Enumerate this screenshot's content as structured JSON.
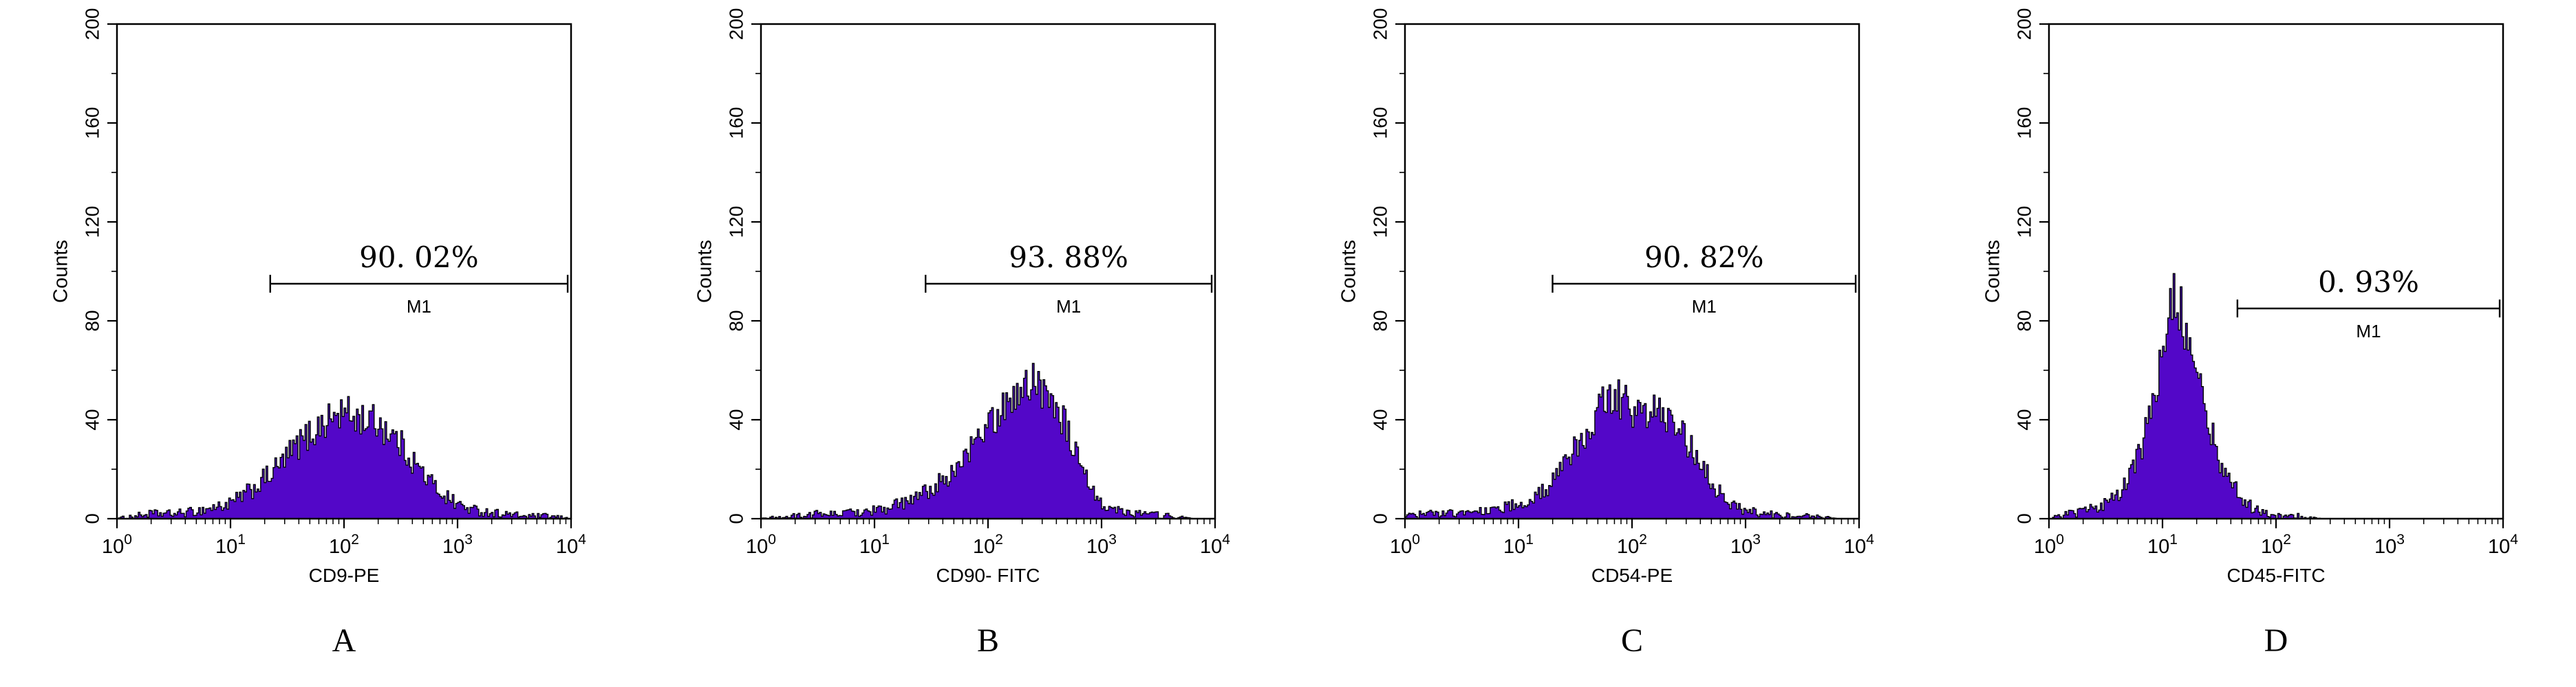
{
  "figure": {
    "background": "#ffffff",
    "axis_color": "#000000",
    "text_color": "#000000"
  },
  "chart_data": [
    {
      "type": "area",
      "panel_label": "A",
      "xlabel": "CD9-PE",
      "ylabel": "Counts",
      "x_scale": "log10",
      "xlim_exponents": [
        0,
        4
      ],
      "ylim": [
        0,
        200
      ],
      "x_ticks_exponents": [
        0,
        1,
        2,
        3,
        4
      ],
      "y_ticks": [
        0,
        40,
        80,
        120,
        160,
        200
      ],
      "histogram_color": "#5307c8",
      "marker": {
        "label": "M1",
        "percent_label": "90. 02%",
        "from_exponent": 1.35,
        "to_exponent": 3.97,
        "y_counts": 95
      },
      "envelope": [
        [
          0,
          0
        ],
        [
          0.15,
          1
        ],
        [
          0.3,
          2
        ],
        [
          0.5,
          2
        ],
        [
          0.7,
          3
        ],
        [
          0.9,
          5
        ],
        [
          1.0,
          6
        ],
        [
          1.1,
          9
        ],
        [
          1.2,
          12
        ],
        [
          1.3,
          16
        ],
        [
          1.4,
          20
        ],
        [
          1.5,
          25
        ],
        [
          1.6,
          30
        ],
        [
          1.7,
          34
        ],
        [
          1.8,
          38
        ],
        [
          1.9,
          41
        ],
        [
          2.0,
          43
        ],
        [
          2.1,
          41
        ],
        [
          2.2,
          40
        ],
        [
          2.3,
          39
        ],
        [
          2.4,
          35
        ],
        [
          2.5,
          30
        ],
        [
          2.6,
          24
        ],
        [
          2.7,
          18
        ],
        [
          2.8,
          13
        ],
        [
          2.9,
          9
        ],
        [
          3.0,
          6
        ],
        [
          3.1,
          4
        ],
        [
          3.2,
          3
        ],
        [
          3.4,
          2
        ],
        [
          3.6,
          1
        ],
        [
          3.8,
          1
        ],
        [
          4,
          0
        ]
      ]
    },
    {
      "type": "area",
      "panel_label": "B",
      "xlabel": "CD90- FITC",
      "ylabel": "Counts",
      "x_scale": "log10",
      "xlim_exponents": [
        0,
        4
      ],
      "ylim": [
        0,
        200
      ],
      "x_ticks_exponents": [
        0,
        1,
        2,
        3,
        4
      ],
      "y_ticks": [
        0,
        40,
        80,
        120,
        160,
        200
      ],
      "histogram_color": "#5307c8",
      "marker": {
        "label": "M1",
        "percent_label": "93. 88%",
        "from_exponent": 1.45,
        "to_exponent": 3.97,
        "y_counts": 95
      },
      "envelope": [
        [
          0,
          0
        ],
        [
          0.3,
          1
        ],
        [
          0.5,
          2
        ],
        [
          0.7,
          2
        ],
        [
          0.9,
          3
        ],
        [
          1.1,
          4
        ],
        [
          1.3,
          7
        ],
        [
          1.5,
          12
        ],
        [
          1.7,
          19
        ],
        [
          1.8,
          25
        ],
        [
          1.9,
          31
        ],
        [
          2.0,
          37
        ],
        [
          2.1,
          43
        ],
        [
          2.2,
          48
        ],
        [
          2.3,
          53
        ],
        [
          2.4,
          56
        ],
        [
          2.5,
          52
        ],
        [
          2.6,
          47
        ],
        [
          2.7,
          36
        ],
        [
          2.8,
          22
        ],
        [
          2.9,
          12
        ],
        [
          3.0,
          7
        ],
        [
          3.1,
          4
        ],
        [
          3.2,
          3
        ],
        [
          3.4,
          2
        ],
        [
          3.6,
          1
        ],
        [
          3.8,
          0
        ],
        [
          4,
          0
        ]
      ]
    },
    {
      "type": "area",
      "panel_label": "C",
      "xlabel": "CD54-PE",
      "ylabel": "Counts",
      "x_scale": "log10",
      "xlim_exponents": [
        0,
        4
      ],
      "ylim": [
        0,
        200
      ],
      "x_ticks_exponents": [
        0,
        1,
        2,
        3,
        4
      ],
      "y_ticks": [
        0,
        40,
        80,
        120,
        160,
        200
      ],
      "histogram_color": "#5307c8",
      "marker": {
        "label": "M1",
        "percent_label": "90. 82%",
        "from_exponent": 1.3,
        "to_exponent": 3.97,
        "y_counts": 95
      },
      "envelope": [
        [
          0,
          1
        ],
        [
          0.2,
          2
        ],
        [
          0.4,
          2
        ],
        [
          0.6,
          3
        ],
        [
          0.8,
          4
        ],
        [
          1.0,
          6
        ],
        [
          1.2,
          10
        ],
        [
          1.3,
          14
        ],
        [
          1.4,
          20
        ],
        [
          1.5,
          28
        ],
        [
          1.6,
          36
        ],
        [
          1.7,
          44
        ],
        [
          1.8,
          50
        ],
        [
          1.9,
          48
        ],
        [
          2.0,
          44
        ],
        [
          2.1,
          42
        ],
        [
          2.2,
          44
        ],
        [
          2.3,
          41
        ],
        [
          2.4,
          36
        ],
        [
          2.5,
          30
        ],
        [
          2.6,
          22
        ],
        [
          2.7,
          15
        ],
        [
          2.8,
          9
        ],
        [
          2.9,
          5
        ],
        [
          3.0,
          3
        ],
        [
          3.2,
          2
        ],
        [
          3.4,
          1
        ],
        [
          3.6,
          1
        ],
        [
          3.8,
          0
        ],
        [
          4,
          0
        ]
      ]
    },
    {
      "type": "area",
      "panel_label": "D",
      "xlabel": "CD45-FITC",
      "ylabel": "Counts",
      "x_scale": "log10",
      "xlim_exponents": [
        0,
        4
      ],
      "ylim": [
        0,
        200
      ],
      "x_ticks_exponents": [
        0,
        1,
        2,
        3,
        4
      ],
      "y_ticks": [
        0,
        40,
        80,
        120,
        160,
        200
      ],
      "histogram_color": "#5307c8",
      "marker": {
        "label": "M1",
        "percent_label": "0. 93%",
        "from_exponent": 1.66,
        "to_exponent": 3.97,
        "y_counts": 85
      },
      "envelope": [
        [
          0,
          1
        ],
        [
          0.2,
          2
        ],
        [
          0.4,
          4
        ],
        [
          0.5,
          6
        ],
        [
          0.6,
          10
        ],
        [
          0.7,
          16
        ],
        [
          0.8,
          27
        ],
        [
          0.9,
          44
        ],
        [
          1.0,
          66
        ],
        [
          1.05,
          78
        ],
        [
          1.1,
          90
        ],
        [
          1.15,
          86
        ],
        [
          1.2,
          78
        ],
        [
          1.3,
          60
        ],
        [
          1.4,
          40
        ],
        [
          1.5,
          25
        ],
        [
          1.6,
          14
        ],
        [
          1.7,
          8
        ],
        [
          1.8,
          4
        ],
        [
          1.9,
          2
        ],
        [
          2.0,
          1
        ],
        [
          2.2,
          1
        ],
        [
          2.4,
          0
        ],
        [
          3.0,
          0
        ],
        [
          4,
          0
        ]
      ]
    }
  ]
}
